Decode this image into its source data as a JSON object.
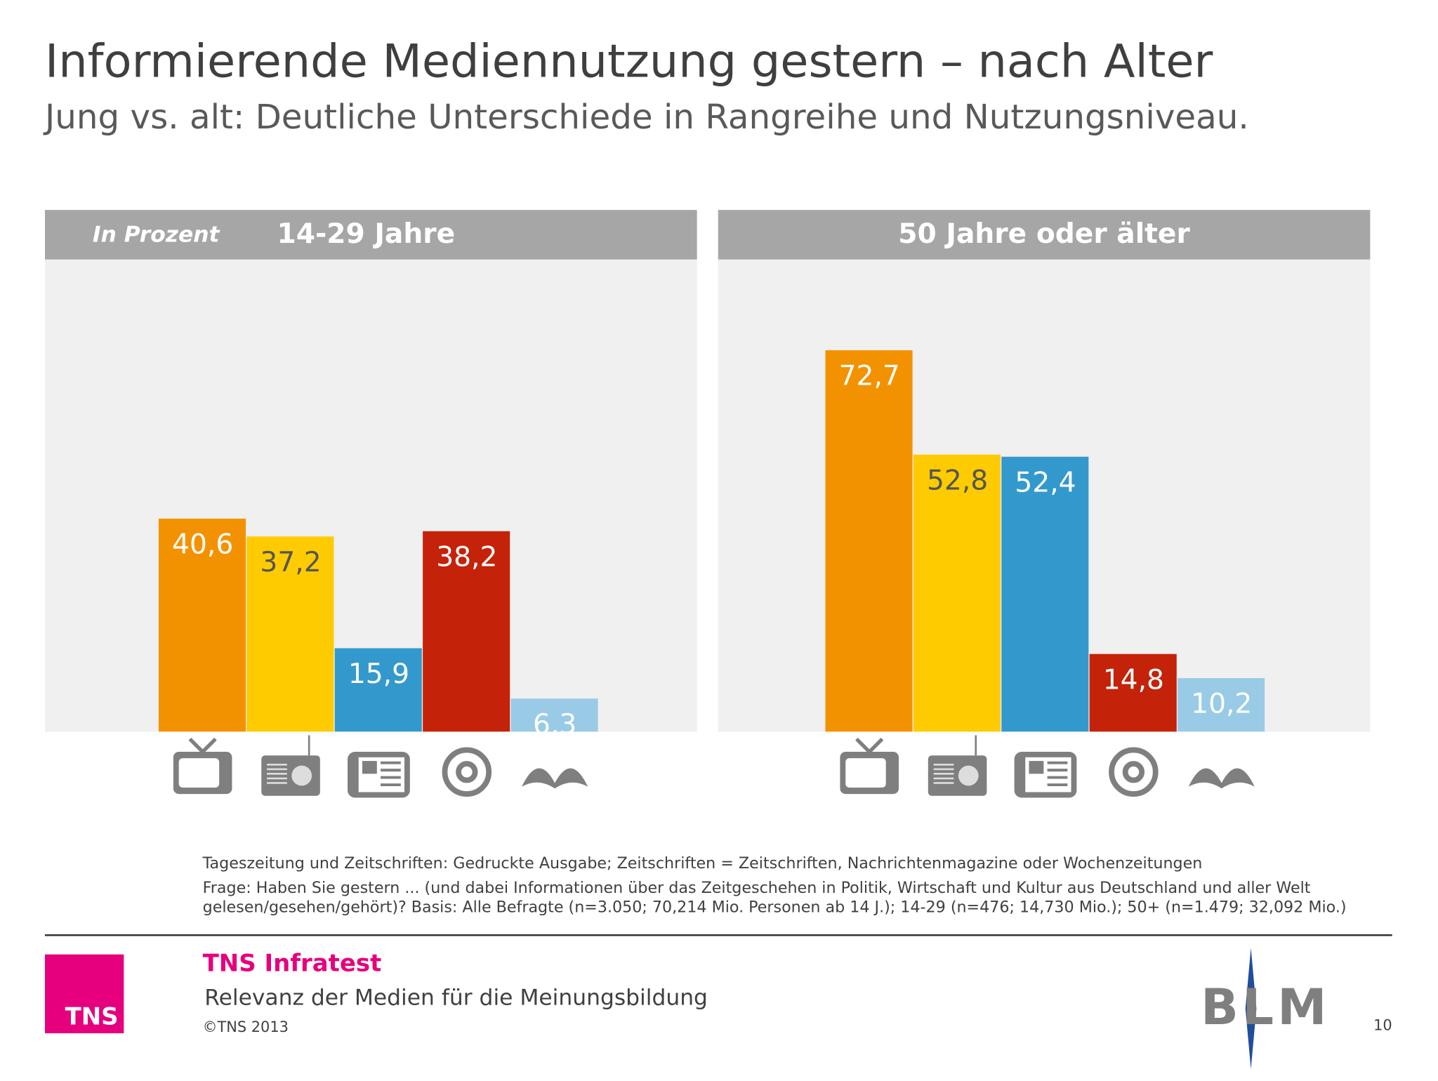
{
  "header": {
    "title": "Informierende Mediennutzung gestern – nach Alter",
    "subtitle": "Jung vs. alt: Deutliche Unterschiede in Rangreihe und Nutzungsniveau."
  },
  "chart_data": [
    {
      "type": "bar",
      "unit_label": "In Prozent",
      "title": "14-29 Jahre",
      "categories": [
        null,
        null,
        null,
        null,
        null
      ],
      "values": [
        40.6,
        37.2,
        15.9,
        38.2,
        6.3
      ],
      "value_labels": [
        "40,6",
        "37,2",
        "15,9",
        "38,2",
        "6,3"
      ],
      "colors": [
        "#f39200",
        "#fecb00",
        "#3399cc",
        "#c42209",
        "#99cbe6"
      ],
      "ylim": [
        0,
        90
      ]
    },
    {
      "type": "bar",
      "title": "50 Jahre oder älter",
      "categories": [
        null,
        null,
        null,
        null,
        null
      ],
      "values": [
        72.7,
        52.8,
        52.4,
        14.8,
        10.2
      ],
      "value_labels": [
        "72,7",
        "52,8",
        "52,4",
        "14,8",
        "10,2"
      ],
      "colors": [
        "#f39200",
        "#fecb00",
        "#3399cc",
        "#c42209",
        "#99cbe6"
      ],
      "ylim": [
        0,
        90
      ]
    }
  ],
  "notes": [
    "Tageszeitung und Zeitschriften: Gedruckte Ausgabe; Zeitschriften = Zeitschriften, Nachrichtenmagazine oder Wochenzeitungen",
    "Frage: Haben Sie gestern ... (und dabei Informationen über das Zeitgeschehen in Politik, Wirtschaft und Kultur aus Deutschland und aller Welt",
    "gelesen/gesehen/gehört)? Basis: Alle Befragte (n=3.050; 70,214 Mio. Personen ab 14 J.); 14-29 (n=476; 14,730 Mio.); 50+ (n=1.479; 32,092 Mio.)"
  ],
  "footer": {
    "brand": "TNS Infratest",
    "subtitle": "Relevanz der Medien für die Meinungsbildung",
    "copyright": "©TNS 2013",
    "page": "10",
    "logo_left": "TNS",
    "logo_right": "BLM"
  }
}
